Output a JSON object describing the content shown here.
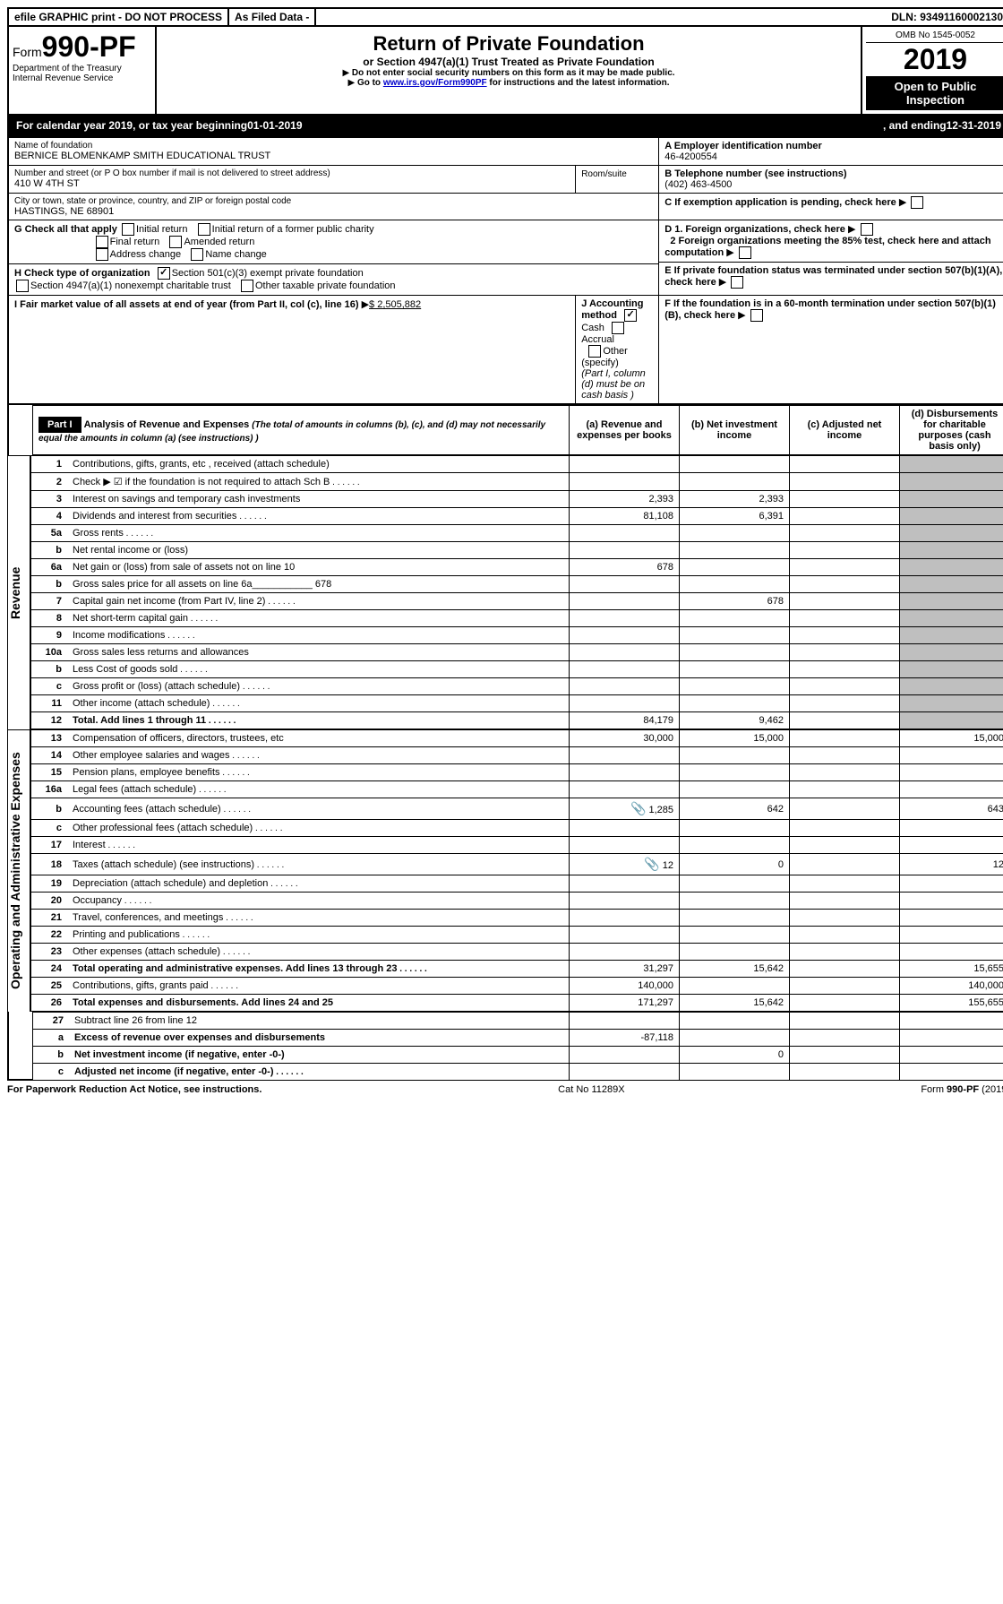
{
  "topbar": {
    "efile": "efile GRAPHIC print - DO NOT PROCESS",
    "asfiled": "As Filed Data -",
    "dln_label": "DLN:",
    "dln": "93491160002130"
  },
  "header": {
    "form_prefix": "Form",
    "form_number": "990-PF",
    "dept": "Department of the Treasury",
    "irs": "Internal Revenue Service",
    "title": "Return of Private Foundation",
    "subtitle": "or Section 4947(a)(1) Trust Treated as Private Foundation",
    "warn1": "Do not enter social security numbers on this form as it may be made public.",
    "warn2_pre": "Go to ",
    "warn2_link": "www.irs.gov/Form990PF",
    "warn2_post": " for instructions and the latest information.",
    "omb": "OMB No 1545-0052",
    "year": "2019",
    "open": "Open to Public Inspection"
  },
  "calyear": {
    "text_pre": "For calendar year 2019, or tax year beginning ",
    "begin": "01-01-2019",
    "mid": ", and ending ",
    "end": "12-31-2019"
  },
  "entity": {
    "name_label": "Name of foundation",
    "name": "BERNICE BLOMENKAMP SMITH EDUCATIONAL TRUST",
    "addr_label": "Number and street (or P O  box number if mail is not delivered to street address)",
    "addr": "410 W 4TH ST",
    "room_label": "Room/suite",
    "city_label": "City or town, state or province, country, and ZIP or foreign postal code",
    "city": "HASTINGS, NE  68901",
    "ein_label": "A Employer identification number",
    "ein": "46-4200554",
    "phone_label": "B Telephone number (see instructions)",
    "phone": "(402) 463-4500",
    "c_label": "C If exemption application is pending, check here"
  },
  "checks": {
    "g_label": "G Check all that apply",
    "g_opts": [
      "Initial return",
      "Initial return of a former public charity",
      "Final return",
      "Amended return",
      "Address change",
      "Name change"
    ],
    "h_label": "H Check type of organization",
    "h_opts": [
      "Section 501(c)(3) exempt private foundation",
      "Section 4947(a)(1) nonexempt charitable trust",
      "Other taxable private foundation"
    ],
    "h_checked": 0,
    "i_label": "I Fair market value of all assets at end of year (from Part II, col  (c), line 16)",
    "i_value": "$  2,505,882",
    "j_label": "J Accounting method",
    "j_opts": [
      "Cash",
      "Accrual",
      "Other (specify)"
    ],
    "j_checked": 0,
    "j_note": "(Part I, column (d) must be on cash basis )",
    "d1": "D 1. Foreign organizations, check here",
    "d2": "2 Foreign organizations meeting the 85% test, check here and attach computation",
    "e": "E  If private foundation status was terminated under section 507(b)(1)(A), check here",
    "f": "F  If the foundation is in a 60-month termination under section 507(b)(1)(B), check here"
  },
  "part1": {
    "label": "Part I",
    "title": "Analysis of Revenue and Expenses",
    "title_note": "(The total of amounts in columns (b), (c), and (d) may not necessarily equal the amounts in column (a) (see instructions) )",
    "cols": {
      "a": "(a) Revenue and expenses per books",
      "b": "(b) Net investment income",
      "c": "(c) Adjusted net income",
      "d": "(d) Disbursements for charitable purposes (cash basis only)"
    }
  },
  "side_labels": {
    "revenue": "Revenue",
    "expenses": "Operating and Administrative Expenses"
  },
  "rows": [
    {
      "n": "1",
      "d": "Contributions, gifts, grants, etc , received (attach schedule)"
    },
    {
      "n": "2",
      "d": "Check ▶ ☑ if the foundation is not required to attach Sch  B",
      "dots": true
    },
    {
      "n": "3",
      "d": "Interest on savings and temporary cash investments",
      "a": "2,393",
      "b": "2,393"
    },
    {
      "n": "4",
      "d": "Dividends and interest from securities",
      "a": "81,108",
      "b": "6,391",
      "dots": true
    },
    {
      "n": "5a",
      "d": "Gross rents",
      "dots": true
    },
    {
      "n": "b",
      "d": "Net rental income or (loss)"
    },
    {
      "n": "6a",
      "d": "Net gain or (loss) from sale of assets not on line 10",
      "a": "678"
    },
    {
      "n": "b",
      "d": "Gross sales price for all assets on line 6a___________ 678"
    },
    {
      "n": "7",
      "d": "Capital gain net income (from Part IV, line 2)",
      "b": "678",
      "dots": true
    },
    {
      "n": "8",
      "d": "Net short-term capital gain",
      "dots": true
    },
    {
      "n": "9",
      "d": "Income modifications",
      "dots": true
    },
    {
      "n": "10a",
      "d": "Gross sales less returns and allowances"
    },
    {
      "n": "b",
      "d": "Less  Cost of goods sold",
      "dots": true
    },
    {
      "n": "c",
      "d": "Gross profit or (loss) (attach schedule)",
      "dots": true
    },
    {
      "n": "11",
      "d": "Other income (attach schedule)",
      "dots": true
    },
    {
      "n": "12",
      "d": "Total. Add lines 1 through 11",
      "bold": true,
      "a": "84,179",
      "b": "9,462",
      "dots": true
    }
  ],
  "exp_rows": [
    {
      "n": "13",
      "d": "Compensation of officers, directors, trustees, etc",
      "a": "30,000",
      "b": "15,000",
      "dd": "15,000"
    },
    {
      "n": "14",
      "d": "Other employee salaries and wages",
      "dots": true
    },
    {
      "n": "15",
      "d": "Pension plans, employee benefits",
      "dots": true
    },
    {
      "n": "16a",
      "d": "Legal fees (attach schedule)",
      "dots": true
    },
    {
      "n": "b",
      "d": "Accounting fees (attach schedule)",
      "icon": true,
      "a": "1,285",
      "b": "642",
      "dd": "643",
      "dots": true
    },
    {
      "n": "c",
      "d": "Other professional fees (attach schedule)",
      "dots": true
    },
    {
      "n": "17",
      "d": "Interest",
      "dots": true
    },
    {
      "n": "18",
      "d": "Taxes (attach schedule) (see instructions)",
      "icon": true,
      "a": "12",
      "b": "0",
      "dd": "12",
      "dots": true
    },
    {
      "n": "19",
      "d": "Depreciation (attach schedule) and depletion",
      "dots": true
    },
    {
      "n": "20",
      "d": "Occupancy",
      "dots": true
    },
    {
      "n": "21",
      "d": "Travel, conferences, and meetings",
      "dots": true
    },
    {
      "n": "22",
      "d": "Printing and publications",
      "dots": true
    },
    {
      "n": "23",
      "d": "Other expenses (attach schedule)",
      "dots": true
    },
    {
      "n": "24",
      "d": "Total operating and administrative expenses. Add lines 13 through 23",
      "bold": true,
      "a": "31,297",
      "b": "15,642",
      "dd": "15,655",
      "dots": true
    },
    {
      "n": "25",
      "d": "Contributions, gifts, grants paid",
      "a": "140,000",
      "dd": "140,000",
      "dots": true
    },
    {
      "n": "26",
      "d": "Total expenses and disbursements. Add lines 24 and 25",
      "bold": true,
      "a": "171,297",
      "b": "15,642",
      "dd": "155,655"
    }
  ],
  "net_rows": [
    {
      "n": "27",
      "d": "Subtract line 26 from line 12"
    },
    {
      "n": "a",
      "d": "Excess of revenue over expenses and disbursements",
      "bold": true,
      "a": "-87,118"
    },
    {
      "n": "b",
      "d": "Net investment income (if negative, enter -0-)",
      "bold": true,
      "b": "0"
    },
    {
      "n": "c",
      "d": "Adjusted net income (if negative, enter -0-)",
      "bold": true,
      "dots": true
    }
  ],
  "footer": {
    "left": "For Paperwork Reduction Act Notice, see instructions.",
    "mid": "Cat  No  11289X",
    "right": "Form 990-PF (2019)"
  }
}
